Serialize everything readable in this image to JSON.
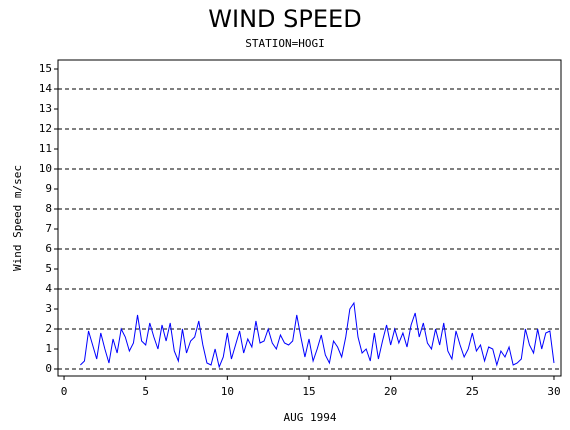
{
  "chart_data": {
    "type": "line",
    "title": "WIND SPEED",
    "subtitle": "STATION=HOGI",
    "xlabel": "AUG 1994",
    "ylabel": "Wind Speed m/sec",
    "x": [
      1,
      1.25,
      1.5,
      1.75,
      2,
      2.25,
      2.5,
      2.75,
      3,
      3.25,
      3.5,
      3.75,
      4,
      4.25,
      4.5,
      4.75,
      5,
      5.25,
      5.5,
      5.75,
      6,
      6.25,
      6.5,
      6.75,
      7,
      7.25,
      7.5,
      7.75,
      8,
      8.25,
      8.5,
      8.75,
      9,
      9.25,
      9.5,
      9.75,
      10,
      10.25,
      10.5,
      10.75,
      11,
      11.25,
      11.5,
      11.75,
      12,
      12.25,
      12.5,
      12.75,
      13,
      13.25,
      13.5,
      13.75,
      14,
      14.25,
      14.5,
      14.75,
      15,
      15.25,
      15.5,
      15.75,
      16,
      16.25,
      16.5,
      16.75,
      17,
      17.25,
      17.5,
      17.75,
      18,
      18.25,
      18.5,
      18.75,
      19,
      19.25,
      19.5,
      19.75,
      20,
      20.25,
      20.5,
      20.75,
      21,
      21.25,
      21.5,
      21.75,
      22,
      22.25,
      22.5,
      22.75,
      23,
      23.25,
      23.5,
      23.75,
      24,
      24.25,
      24.5,
      24.75,
      25,
      25.25,
      25.5,
      25.75,
      26,
      26.25,
      26.5,
      26.75,
      27,
      27.25,
      27.5,
      27.75,
      28,
      28.25,
      28.5,
      28.75,
      29,
      29.25,
      29.5,
      29.75,
      30
    ],
    "series": [
      {
        "name": "Wind Speed",
        "color": "#0000ff",
        "values": [
          0.2,
          0.4,
          1.9,
          1.2,
          0.5,
          1.8,
          1.0,
          0.3,
          1.5,
          0.8,
          2.0,
          1.6,
          0.9,
          1.3,
          2.7,
          1.4,
          1.2,
          2.3,
          1.6,
          1.0,
          2.2,
          1.4,
          2.3,
          0.9,
          0.4,
          2.0,
          0.8,
          1.4,
          1.6,
          2.4,
          1.2,
          0.3,
          0.2,
          1.0,
          0.1,
          0.6,
          1.8,
          0.5,
          1.2,
          1.9,
          0.8,
          1.5,
          1.1,
          2.4,
          1.3,
          1.4,
          2.0,
          1.3,
          1.0,
          1.7,
          1.3,
          1.2,
          1.4,
          2.7,
          1.6,
          0.6,
          1.5,
          0.4,
          1.0,
          1.7,
          0.7,
          0.3,
          1.4,
          1.1,
          0.6,
          1.6,
          3.0,
          3.3,
          1.6,
          0.8,
          1.0,
          0.4,
          1.8,
          0.5,
          1.4,
          2.2,
          1.2,
          2.0,
          1.3,
          1.8,
          1.1,
          2.2,
          2.8,
          1.6,
          2.3,
          1.3,
          1.0,
          2.0,
          1.2,
          2.3,
          0.9,
          0.5,
          1.9,
          1.2,
          0.6,
          1.0,
          1.8,
          0.9,
          1.2,
          0.4,
          1.1,
          1.0,
          0.2,
          0.9,
          0.6,
          1.1,
          0.2,
          0.3,
          0.5,
          2.0,
          1.2,
          0.8,
          2.0,
          1.0,
          1.8,
          1.9,
          0.3
        ]
      }
    ],
    "xlim": [
      -0.37,
      30.43
    ],
    "xticks": [
      0,
      5,
      10,
      15,
      20,
      25,
      30
    ],
    "ylim": [
      -0.35,
      15.45
    ],
    "yticks": [
      0,
      1,
      2,
      3,
      4,
      5,
      6,
      7,
      8,
      9,
      10,
      11,
      12,
      13,
      14,
      15
    ],
    "grid_ticks": [
      0,
      2,
      4,
      6,
      8,
      10,
      12,
      14
    ]
  }
}
